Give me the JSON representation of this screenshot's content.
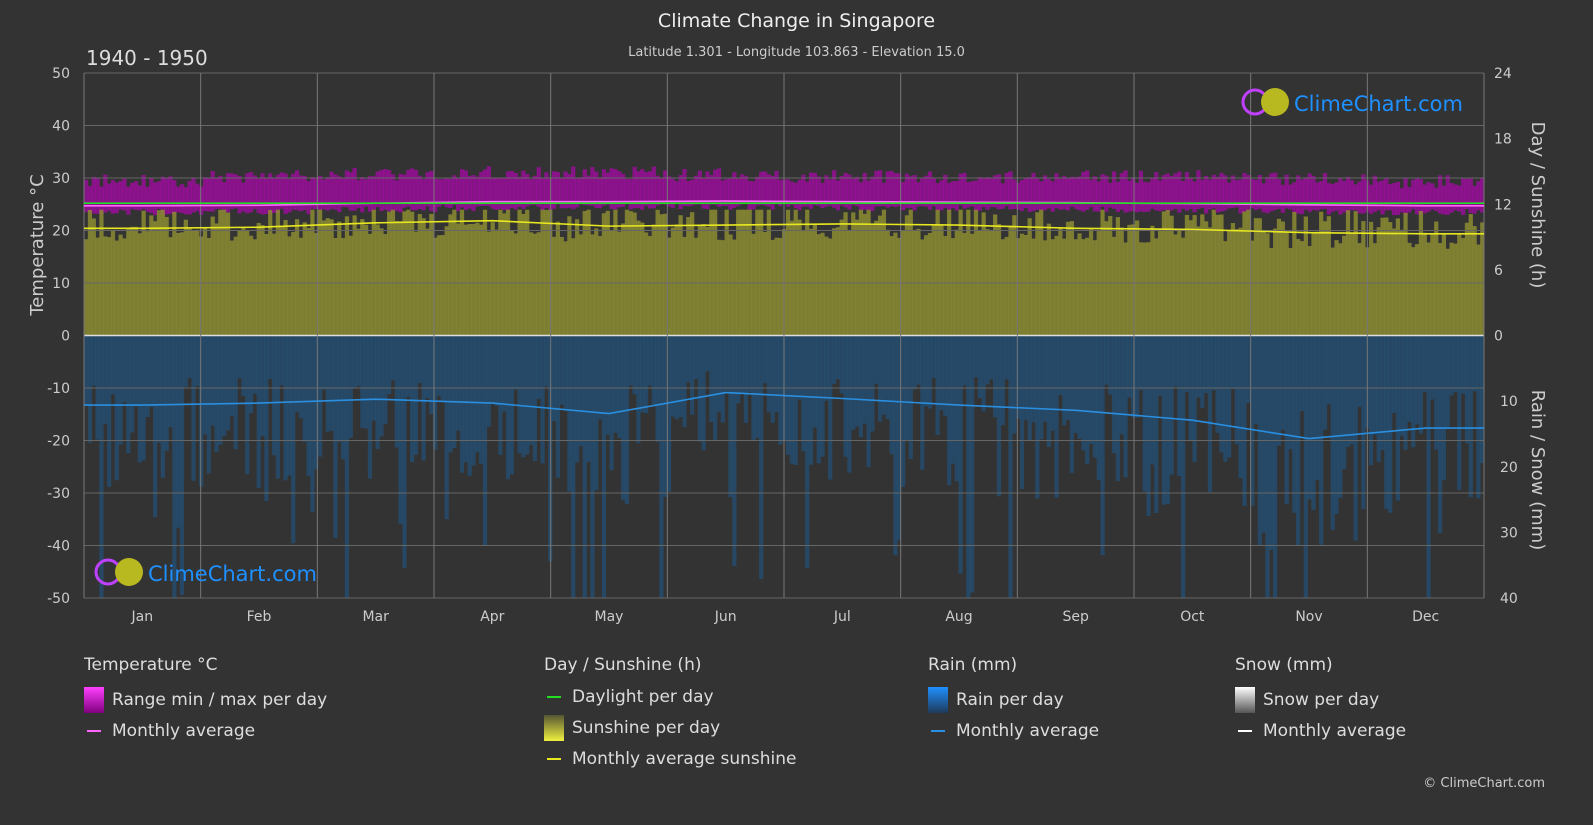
{
  "title": "Climate Change in Singapore",
  "subtitle": "Latitude 1.301 - Longitude 103.863 - Elevation 15.0",
  "period": "1940 - 1950",
  "logo_text": "ClimeChart.com",
  "copyright": "© ClimeChart.com",
  "chart_data": {
    "type": "line",
    "categories": [
      "Jan",
      "Feb",
      "Mar",
      "Apr",
      "May",
      "Jun",
      "Jul",
      "Aug",
      "Sep",
      "Oct",
      "Nov",
      "Dec"
    ],
    "left_axis": {
      "label": "Temperature °C",
      "ylim": [
        -50,
        50
      ],
      "ticks": [
        "50",
        "40",
        "30",
        "20",
        "10",
        "0",
        "-10",
        "-20",
        "-30",
        "-40",
        "-50"
      ]
    },
    "right_axis_top": {
      "label": "Day / Sunshine (h)",
      "ylim": [
        0,
        24
      ],
      "ticks": [
        "24",
        "18",
        "12",
        "6",
        "0"
      ]
    },
    "right_axis_bottom": {
      "label": "Rain / Snow (mm)",
      "ylim": [
        0,
        40
      ],
      "ticks": [
        "0",
        "10",
        "20",
        "30",
        "40"
      ]
    },
    "grid": true,
    "series": [
      {
        "name": "Monthly average",
        "group": "temperature",
        "color": "#ff66ff",
        "values": [
          24.7,
          24.8,
          25.2,
          25.5,
          25.5,
          25.6,
          25.5,
          25.4,
          25.3,
          25.1,
          24.9,
          24.7
        ]
      },
      {
        "name": "Daylight per day",
        "group": "sunshine",
        "color": "#22dd22",
        "values": [
          12.1,
          12.1,
          12.1,
          12.1,
          12.1,
          12.1,
          12.1,
          12.1,
          12.1,
          12.1,
          12.1,
          12.1
        ]
      },
      {
        "name": "Monthly average sunshine",
        "group": "sunshine",
        "color": "#e8e820",
        "values": [
          9.8,
          9.9,
          10.3,
          10.5,
          10.0,
          10.1,
          10.2,
          10.1,
          9.8,
          9.7,
          9.4,
          9.3
        ]
      },
      {
        "name": "Monthly average",
        "group": "rain",
        "color": "#2a8fe0",
        "values": [
          10.6,
          10.3,
          9.7,
          10.3,
          11.9,
          8.7,
          9.6,
          10.6,
          11.4,
          12.9,
          15.7,
          14.1
        ]
      }
    ],
    "temperature_range": {
      "min": [
        23.5,
        23.6,
        24.0,
        24.3,
        24.5,
        24.5,
        24.3,
        24.2,
        24.0,
        23.8,
        23.6,
        23.5
      ],
      "max": [
        29.5,
        30.3,
        30.8,
        31.0,
        31.0,
        30.6,
        30.3,
        30.2,
        30.2,
        30.3,
        29.8,
        29.3
      ]
    }
  },
  "legend": {
    "temperature": {
      "header": "Temperature °C",
      "items": [
        "Range min / max per day",
        "Monthly average"
      ]
    },
    "sunshine": {
      "header": "Day / Sunshine (h)",
      "items": [
        "Daylight per day",
        "Sunshine per day",
        "Monthly average sunshine"
      ]
    },
    "rain": {
      "header": "Rain (mm)",
      "items": [
        "Rain per day",
        "Monthly average"
      ]
    },
    "snow": {
      "header": "Snow (mm)",
      "items": [
        "Snow per day",
        "Monthly average"
      ]
    }
  },
  "colors": {
    "range": "#c000c0",
    "sunshine_bar": "#8c8c34",
    "rain_bar": "#1e5a8c",
    "snow_bar": "#cccccc",
    "snow_line": "#ffffff"
  }
}
